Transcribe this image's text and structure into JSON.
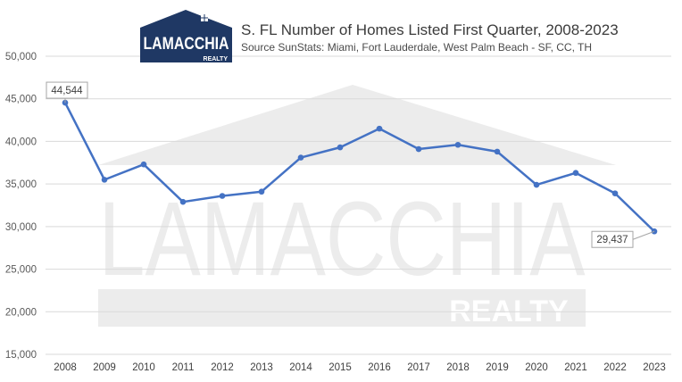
{
  "brand": {
    "logo_text": "LAMACCHIA",
    "logo_subtext": "REALTY"
  },
  "colors": {
    "line": "#4472c4",
    "grid": "#d9d9d9",
    "text": "#595959",
    "logo_navy": "#1f3864",
    "watermark": "#ececec"
  },
  "chart_data": {
    "type": "line",
    "title": "S. FL Number of Homes Listed First Quarter, 2008-2023",
    "subtitle": "Source SunStats: Miami, Fort Lauderdale, West Palm Beach - SF, CC, TH",
    "xlabel": "",
    "ylabel": "",
    "categories": [
      "2008",
      "2009",
      "2010",
      "2011",
      "2012",
      "2013",
      "2014",
      "2015",
      "2016",
      "2017",
      "2018",
      "2019",
      "2020",
      "2021",
      "2022",
      "2023"
    ],
    "series": [
      {
        "values": [
          44544,
          35500,
          37300,
          32900,
          33600,
          34100,
          38100,
          39300,
          41500,
          39100,
          39600,
          38800,
          34900,
          36300,
          33900,
          29437
        ]
      }
    ],
    "ylim": [
      15000,
      50000
    ],
    "yticks": [
      15000,
      20000,
      25000,
      30000,
      35000,
      40000,
      45000,
      50000
    ],
    "ytick_labels": [
      "15,000",
      "20,000",
      "25,000",
      "30,000",
      "35,000",
      "40,000",
      "45,000",
      "50,000"
    ],
    "grid": true,
    "legend": "none",
    "annotations": [
      {
        "index": 0,
        "text": "44,544"
      },
      {
        "index": 15,
        "text": "29,437"
      }
    ]
  }
}
